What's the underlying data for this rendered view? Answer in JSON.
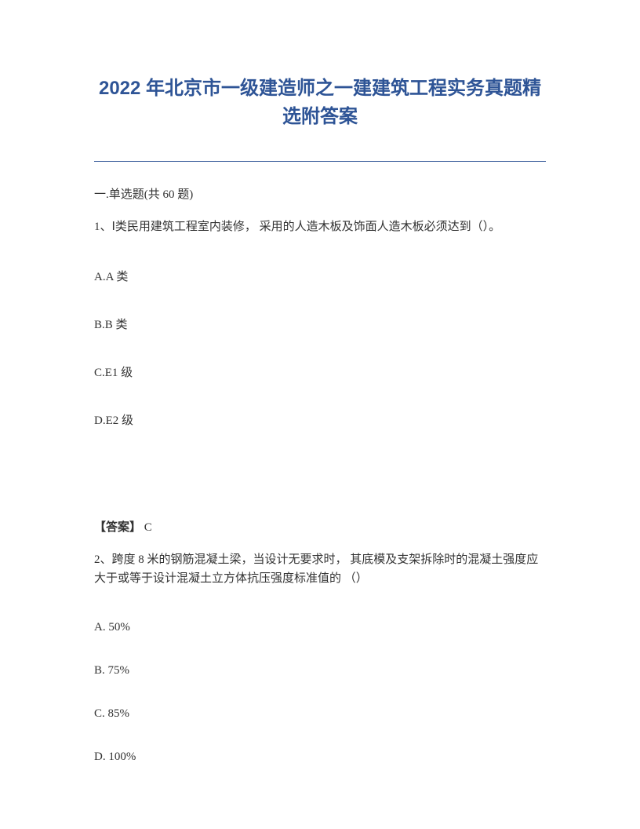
{
  "document": {
    "title": "2022 年北京市一级建造师之一建建筑工程实务真题精选附答案",
    "title_color": "#2e5496",
    "title_fontsize": 24,
    "section_label": "一.单选题(共 60 题)",
    "question1": {
      "text": "1、Ⅰ类民用建筑工程室内装修， 采用的人造木板及饰面人造木板必须达到（）。",
      "options": {
        "a": "A.A 类",
        "b": "B.B 类",
        "c": "C.E1 级",
        "d": "D.E2 级"
      },
      "answer_label": "【答案】",
      "answer_value": "C"
    },
    "question2": {
      "text": "2、跨度 8 米的钢筋混凝土梁，当设计无要求时， 其底模及支架拆除时的混凝土强度应大于或等于设计混凝土立方体抗压强度标准值的 （）",
      "options": {
        "a": "A. 50%",
        "b": "B. 75%",
        "c": "C. 85%",
        "d": "D. 100%"
      }
    },
    "body_fontsize": 15,
    "body_color": "#333333",
    "background_color": "#ffffff"
  }
}
